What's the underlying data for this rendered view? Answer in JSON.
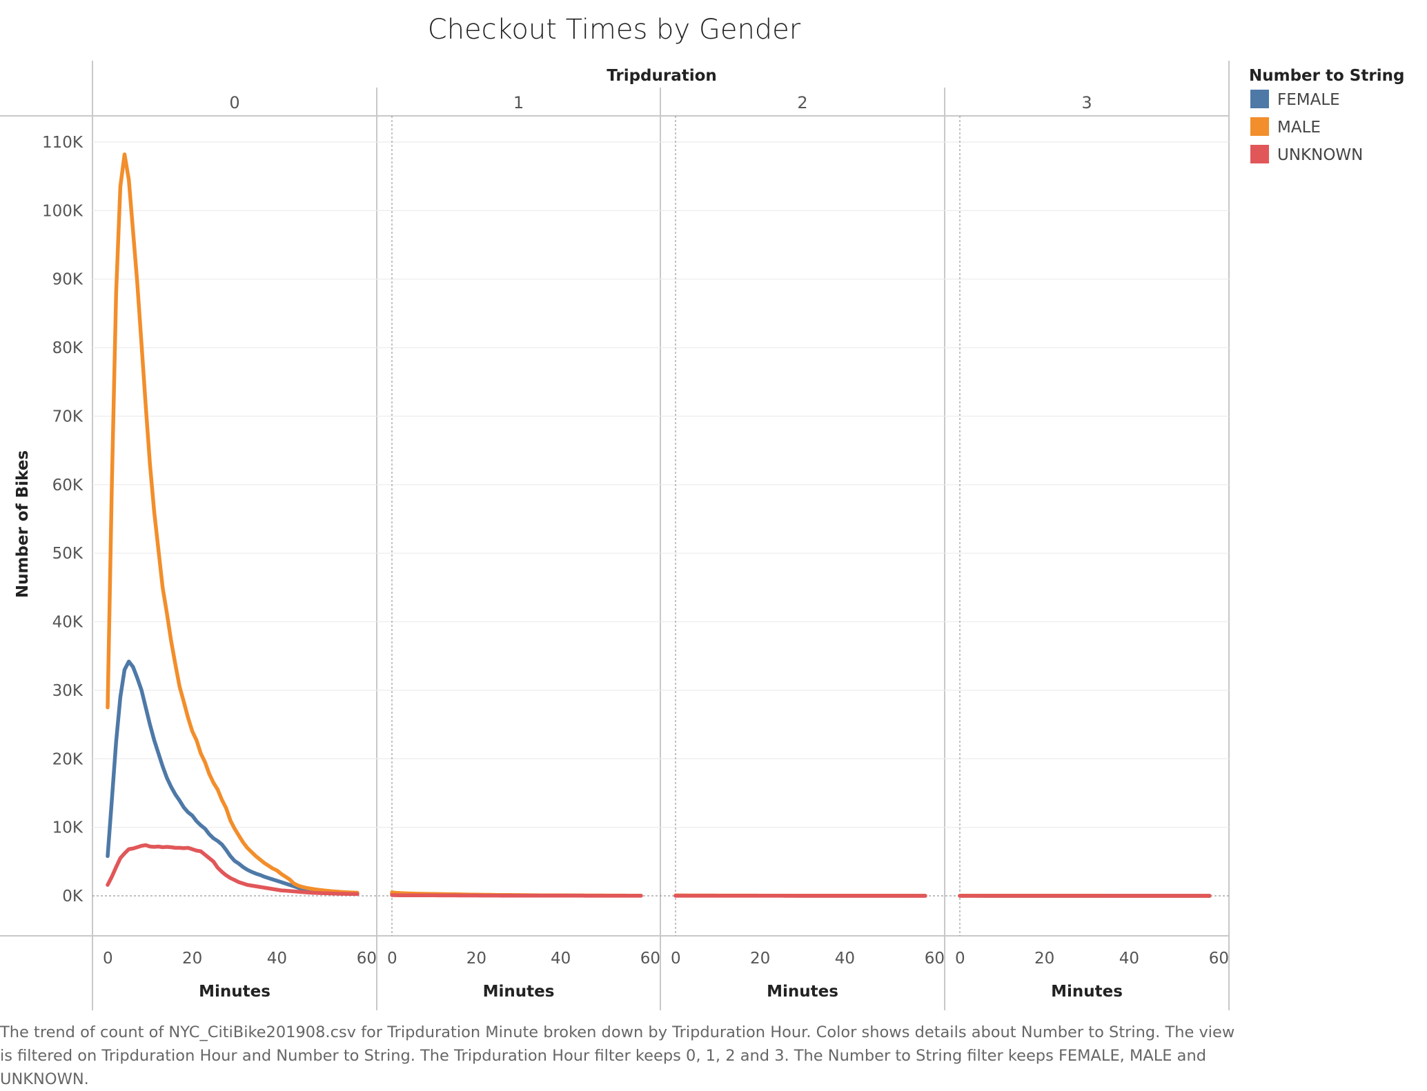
{
  "chart_data": {
    "type": "line",
    "title": "Checkout Times by Gender",
    "facet_title": "Tripduration",
    "facets": [
      "0",
      "1",
      "2",
      "3"
    ],
    "xlabel": "Minutes",
    "ylabel": "Number of Bikes",
    "xlim": [
      0,
      60
    ],
    "ylim": [
      -5000,
      112500
    ],
    "x_ticks": [
      "0",
      "20",
      "40",
      "60"
    ],
    "y_ticks": [
      {
        "value": 0,
        "label": "0K"
      },
      {
        "value": 10000,
        "label": "10K"
      },
      {
        "value": 20000,
        "label": "20K"
      },
      {
        "value": 30000,
        "label": "30K"
      },
      {
        "value": 40000,
        "label": "40K"
      },
      {
        "value": 50000,
        "label": "50K"
      },
      {
        "value": 60000,
        "label": "60K"
      },
      {
        "value": 70000,
        "label": "70K"
      },
      {
        "value": 80000,
        "label": "80K"
      },
      {
        "value": 90000,
        "label": "90K"
      },
      {
        "value": 100000,
        "label": "100K"
      },
      {
        "value": 110000,
        "label": "110K"
      }
    ],
    "grid": true,
    "legend": {
      "title": "Number to String",
      "position": "right"
    },
    "x": [
      0,
      1,
      2,
      3,
      4,
      5,
      6,
      7,
      8,
      9,
      10,
      11,
      12,
      13,
      14,
      15,
      16,
      17,
      18,
      19,
      20,
      21,
      22,
      23,
      24,
      25,
      26,
      27,
      28,
      29,
      30,
      31,
      32,
      33,
      34,
      35,
      36,
      37,
      38,
      39,
      40,
      41,
      42,
      43,
      44,
      45,
      46,
      47,
      48,
      49,
      50,
      51,
      52,
      53,
      54,
      55,
      56,
      57,
      58,
      59
    ],
    "series": [
      {
        "name": "FEMALE",
        "color": "#4e79a7",
        "panels": [
          [
            5800,
            14000,
            22500,
            29000,
            33000,
            34200,
            33400,
            31800,
            30000,
            27500,
            25000,
            22700,
            20800,
            18900,
            17200,
            15900,
            14800,
            13900,
            12900,
            12200,
            11700,
            10900,
            10300,
            9800,
            9000,
            8400,
            8000,
            7500,
            6700,
            5800,
            5100,
            4700,
            4200,
            3800,
            3500,
            3250,
            3050,
            2800,
            2600,
            2400,
            2200,
            2000,
            1800,
            1600,
            1400,
            1200,
            1000,
            900,
            800,
            700,
            620,
            560,
            500,
            450,
            420,
            390,
            370,
            350,
            330,
            320
          ],
          [
            300,
            260,
            230,
            210,
            200,
            190,
            180,
            170,
            165,
            160,
            150,
            145,
            140,
            135,
            130,
            125,
            120,
            115,
            110,
            105,
            100,
            96,
            92,
            88,
            85,
            82,
            79,
            76,
            73,
            70,
            67,
            64,
            62,
            60,
            58,
            56,
            54,
            52,
            50,
            48,
            46,
            44,
            42,
            40,
            38,
            36,
            35,
            34,
            33,
            32,
            31,
            30,
            29,
            28,
            27,
            26,
            25,
            24,
            23,
            22
          ],
          [
            30,
            29,
            28,
            27,
            26,
            26,
            25,
            25,
            24,
            24,
            23,
            23,
            22,
            22,
            21,
            21,
            20,
            20,
            19,
            19,
            18,
            18,
            18,
            17,
            17,
            17,
            16,
            16,
            16,
            15,
            15,
            15,
            14,
            14,
            14,
            13,
            13,
            13,
            12,
            12,
            12,
            11,
            11,
            11,
            10,
            10,
            10,
            10,
            9,
            9,
            9,
            9,
            8,
            8,
            8,
            8,
            7,
            7,
            7,
            7
          ],
          [
            6,
            6,
            6,
            6,
            6,
            6,
            5,
            5,
            5,
            5,
            5,
            5,
            5,
            5,
            5,
            4,
            4,
            4,
            4,
            4,
            4,
            4,
            4,
            4,
            4,
            4,
            4,
            3,
            3,
            3,
            3,
            3,
            3,
            3,
            3,
            3,
            3,
            3,
            3,
            3,
            3,
            3,
            3,
            3,
            2,
            2,
            2,
            2,
            2,
            2,
            2,
            2,
            2,
            2,
            2,
            2,
            2,
            2,
            2,
            2
          ]
        ]
      },
      {
        "name": "MALE",
        "color": "#f28e2b",
        "panels": [
          [
            27500,
            60000,
            88000,
            103500,
            108200,
            104500,
            97000,
            89500,
            80500,
            71500,
            63000,
            56000,
            50500,
            45000,
            41200,
            37200,
            33800,
            30500,
            28300,
            26000,
            24000,
            22700,
            20800,
            19500,
            17800,
            16500,
            15500,
            14000,
            12800,
            11000,
            9800,
            8800,
            7800,
            7000,
            6400,
            5800,
            5300,
            4800,
            4400,
            4000,
            3700,
            3200,
            2800,
            2400,
            1800,
            1500,
            1300,
            1150,
            1050,
            950,
            870,
            800,
            730,
            670,
            620,
            570,
            530,
            500,
            470,
            450
          ],
          [
            500,
            440,
            400,
            370,
            350,
            330,
            310,
            300,
            290,
            280,
            270,
            260,
            250,
            240,
            230,
            220,
            210,
            200,
            190,
            180,
            170,
            162,
            155,
            148,
            141,
            135,
            129,
            123,
            117,
            111,
            106,
            101,
            97,
            93,
            89,
            85,
            81,
            78,
            75,
            72,
            69,
            66,
            63,
            60,
            58,
            56,
            54,
            52,
            50,
            48,
            46,
            44,
            42,
            40,
            38,
            36,
            35,
            34,
            33,
            32
          ],
          [
            60,
            58,
            56,
            54,
            52,
            50,
            49,
            48,
            47,
            46,
            45,
            44,
            43,
            42,
            41,
            40,
            39,
            38,
            37,
            36,
            35,
            34,
            33,
            32,
            31,
            30,
            30,
            29,
            29,
            28,
            28,
            27,
            27,
            26,
            26,
            25,
            25,
            24,
            24,
            23,
            23,
            22,
            22,
            21,
            21,
            20,
            20,
            19,
            19,
            18,
            18,
            17,
            17,
            16,
            16,
            15,
            15,
            14,
            14,
            13
          ],
          [
            12,
            12,
            12,
            11,
            11,
            11,
            11,
            10,
            10,
            10,
            10,
            10,
            9,
            9,
            9,
            9,
            9,
            8,
            8,
            8,
            8,
            8,
            8,
            7,
            7,
            7,
            7,
            7,
            7,
            6,
            6,
            6,
            6,
            6,
            6,
            6,
            6,
            5,
            5,
            5,
            5,
            5,
            5,
            5,
            5,
            5,
            4,
            4,
            4,
            4,
            4,
            4,
            4,
            4,
            4,
            4,
            4,
            4,
            3,
            3
          ]
        ]
      },
      {
        "name": "UNKNOWN",
        "color": "#e15759",
        "panels": [
          [
            1600,
            2800,
            4200,
            5500,
            6200,
            6800,
            6900,
            7100,
            7300,
            7400,
            7200,
            7150,
            7200,
            7100,
            7150,
            7100,
            7000,
            7000,
            6950,
            7000,
            6800,
            6600,
            6500,
            6000,
            5500,
            5000,
            4100,
            3500,
            3000,
            2600,
            2300,
            2000,
            1800,
            1600,
            1500,
            1400,
            1300,
            1200,
            1100,
            1000,
            900,
            800,
            750,
            700,
            650,
            600,
            550,
            500,
            450,
            420,
            400,
            380,
            360,
            340,
            320,
            300,
            290,
            280,
            270,
            260
          ],
          [
            100,
            90,
            85,
            80,
            78,
            76,
            74,
            72,
            70,
            68,
            66,
            64,
            62,
            60,
            58,
            56,
            54,
            52,
            50,
            48,
            46,
            44,
            42,
            40,
            38,
            36,
            35,
            34,
            33,
            32,
            31,
            30,
            29,
            28,
            27,
            26,
            25,
            24,
            23,
            22,
            21,
            20,
            19,
            18,
            17,
            16,
            15,
            15,
            14,
            14,
            13,
            13,
            12,
            12,
            11,
            11,
            10,
            10,
            10,
            10
          ],
          [
            10,
            10,
            10,
            9,
            9,
            9,
            9,
            9,
            8,
            8,
            8,
            8,
            8,
            7,
            7,
            7,
            7,
            7,
            7,
            6,
            6,
            6,
            6,
            6,
            6,
            6,
            5,
            5,
            5,
            5,
            5,
            5,
            5,
            5,
            5,
            4,
            4,
            4,
            4,
            4,
            4,
            4,
            4,
            4,
            4,
            3,
            3,
            3,
            3,
            3,
            3,
            3,
            3,
            3,
            3,
            3,
            3,
            3,
            3,
            3
          ],
          [
            2,
            2,
            2,
            2,
            2,
            2,
            2,
            2,
            2,
            2,
            2,
            2,
            2,
            2,
            2,
            2,
            2,
            2,
            2,
            2,
            2,
            2,
            2,
            2,
            2,
            1,
            1,
            1,
            1,
            1,
            1,
            1,
            1,
            1,
            1,
            1,
            1,
            1,
            1,
            1,
            1,
            1,
            1,
            1,
            1,
            1,
            1,
            1,
            1,
            1,
            1,
            1,
            1,
            1,
            1,
            1,
            1,
            1,
            1,
            1
          ]
        ]
      }
    ]
  },
  "caption": "The trend of count of NYC_CitiBike201908.csv for Tripduration Minute broken down by Tripduration Hour.  Color shows details about Number to String. The view is filtered on Tripduration Hour and Number to String. The Tripduration Hour filter keeps 0, 1, 2 and 3. The Number to String filter keeps FEMALE, MALE and UNKNOWN."
}
